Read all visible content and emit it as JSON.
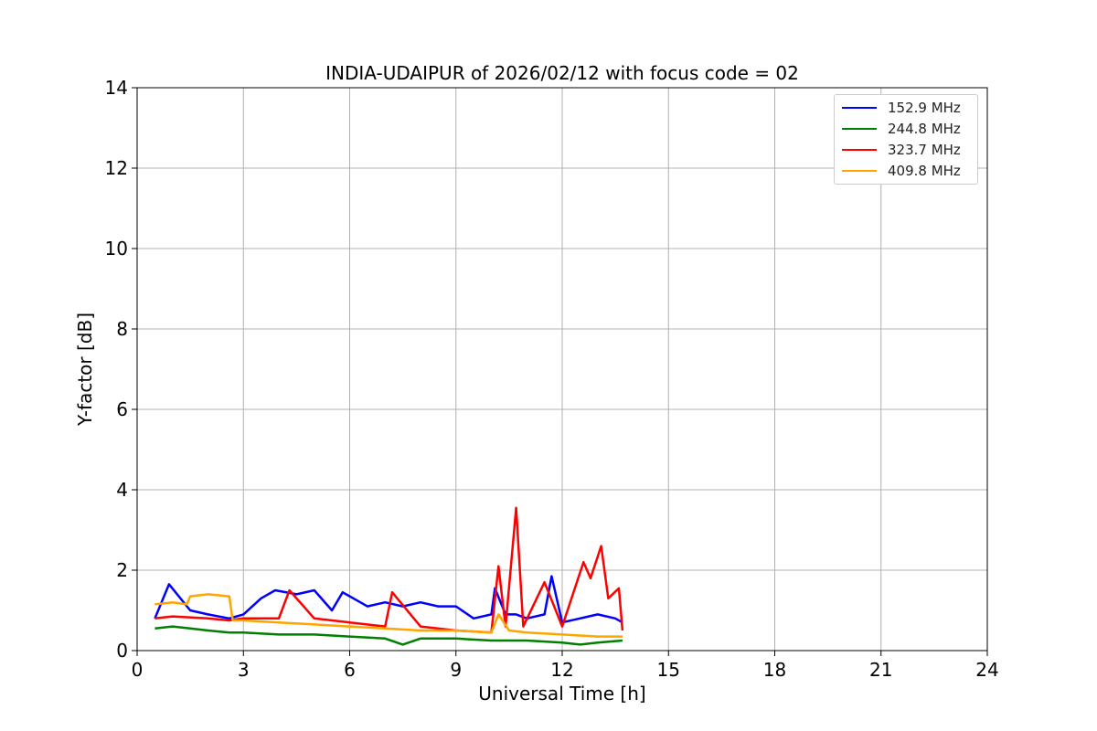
{
  "chart_data": {
    "type": "line",
    "title": "INDIA-UDAIPUR of 2026/02/12 with focus code = 02",
    "xlabel": "Universal Time [h]",
    "ylabel": "Y-factor [dB]",
    "xlim": [
      0,
      24
    ],
    "ylim": [
      0,
      14
    ],
    "xticks": [
      "0",
      "3",
      "6",
      "9",
      "12",
      "15",
      "18",
      "21",
      "24"
    ],
    "yticks": [
      "0",
      "2",
      "4",
      "6",
      "8",
      "10",
      "12",
      "14"
    ],
    "grid": true,
    "legend_position": "top-right",
    "series": [
      {
        "name": "152.9 MHz",
        "color": "#0000ff",
        "x": [
          0.5,
          0.9,
          1.5,
          2.0,
          2.6,
          3.0,
          3.5,
          3.9,
          4.5,
          5.0,
          5.5,
          5.8,
          6.5,
          7.0,
          7.5,
          8.0,
          8.5,
          9.0,
          9.5,
          10.0,
          10.1,
          10.4,
          10.7,
          11.0,
          11.5,
          11.7,
          12.0,
          12.5,
          13.0,
          13.5,
          13.7
        ],
        "y": [
          0.8,
          1.65,
          1.0,
          0.9,
          0.8,
          0.9,
          1.3,
          1.5,
          1.4,
          1.5,
          1.0,
          1.45,
          1.1,
          1.2,
          1.1,
          1.2,
          1.1,
          1.1,
          0.8,
          0.9,
          1.55,
          0.9,
          0.9,
          0.8,
          0.9,
          1.85,
          0.7,
          0.8,
          0.9,
          0.8,
          0.7
        ]
      },
      {
        "name": "244.8 MHz",
        "color": "#008000",
        "x": [
          0.5,
          1.0,
          1.5,
          2.0,
          2.6,
          3.0,
          4.0,
          5.0,
          6.0,
          7.0,
          7.5,
          8.0,
          9.0,
          10.0,
          11.0,
          12.0,
          12.5,
          13.0,
          13.7
        ],
        "y": [
          0.55,
          0.6,
          0.55,
          0.5,
          0.45,
          0.45,
          0.4,
          0.4,
          0.35,
          0.3,
          0.15,
          0.3,
          0.3,
          0.25,
          0.25,
          0.2,
          0.15,
          0.2,
          0.25
        ]
      },
      {
        "name": "323.7 MHz",
        "color": "#ff0000",
        "x": [
          0.5,
          1.0,
          2.0,
          2.6,
          3.0,
          4.0,
          4.3,
          5.0,
          6.0,
          7.0,
          7.2,
          8.0,
          9.0,
          10.0,
          10.2,
          10.4,
          10.7,
          10.9,
          11.5,
          12.0,
          12.6,
          12.8,
          13.1,
          13.3,
          13.6,
          13.7
        ],
        "y": [
          0.8,
          0.85,
          0.8,
          0.75,
          0.8,
          0.8,
          1.5,
          0.8,
          0.7,
          0.6,
          1.45,
          0.6,
          0.5,
          0.45,
          2.1,
          0.6,
          3.55,
          0.6,
          1.7,
          0.6,
          2.2,
          1.8,
          2.6,
          1.3,
          1.55,
          0.5
        ]
      },
      {
        "name": "409.8 MHz",
        "color": "#ffa500",
        "x": [
          0.5,
          1.0,
          1.4,
          1.5,
          2.0,
          2.6,
          2.7,
          3.0,
          4.0,
          5.0,
          6.0,
          7.0,
          8.0,
          9.0,
          10.0,
          10.2,
          10.5,
          11.0,
          12.0,
          13.0,
          13.7
        ],
        "y": [
          1.15,
          1.2,
          1.15,
          1.35,
          1.4,
          1.35,
          0.75,
          0.75,
          0.7,
          0.65,
          0.6,
          0.55,
          0.5,
          0.5,
          0.45,
          0.9,
          0.5,
          0.45,
          0.4,
          0.35,
          0.35
        ]
      }
    ]
  }
}
